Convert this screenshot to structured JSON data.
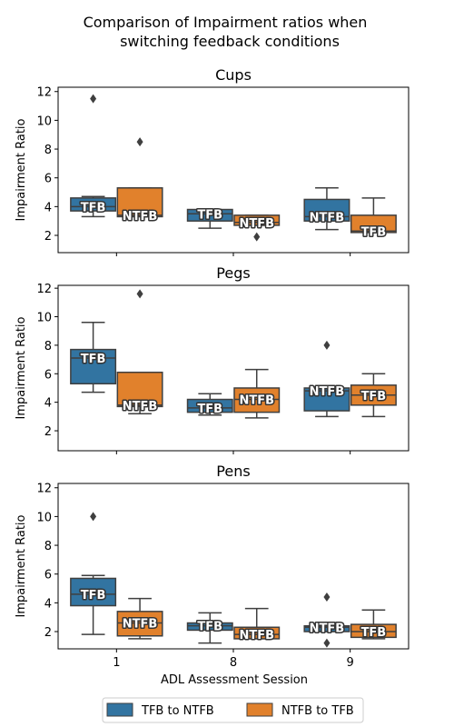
{
  "figure": {
    "title_line1": "Comparison of Impairment ratios when",
    "title_line2": "switching feedback conditions",
    "xlabel": "ADL Assessment Session",
    "ylabel": "Impairment Ratio"
  },
  "legend": {
    "placement": "bottom-center",
    "items": [
      {
        "label": "TFB to NTFB",
        "color": "#3274a1"
      },
      {
        "label": "NTFB to TFB",
        "color": "#e1812c"
      }
    ]
  },
  "colors": {
    "series1": "#3274a1",
    "series2": "#e1812c",
    "edge": "#3f3f3f"
  },
  "chart_data": [
    {
      "type": "box",
      "title": "Cups",
      "categories": [
        "1",
        "8",
        "9"
      ],
      "ylim": [
        0.8,
        12.3
      ],
      "yticks": [
        2,
        4,
        6,
        8,
        10,
        12
      ],
      "series": [
        {
          "name": "TFB to NTFB",
          "boxes": [
            {
              "category": "1",
              "whislo": 3.3,
              "q1": 3.7,
              "med": 4.0,
              "q3": 4.6,
              "whishi": 4.7,
              "fliers": [
                11.5
              ],
              "label": "TFB"
            },
            {
              "category": "8",
              "whislo": 2.5,
              "q1": 3.0,
              "med": 3.5,
              "q3": 3.8,
              "whishi": 3.8,
              "fliers": [],
              "label": "TFB"
            },
            {
              "category": "9",
              "whislo": 2.4,
              "q1": 3.0,
              "med": 3.3,
              "q3": 4.5,
              "whishi": 5.3,
              "fliers": [],
              "label": "NTFB"
            }
          ]
        },
        {
          "name": "NTFB to TFB",
          "boxes": [
            {
              "category": "1",
              "whislo": 3.3,
              "q1": 3.3,
              "med": 3.4,
              "q3": 5.3,
              "whishi": 5.3,
              "fliers": [
                8.5
              ],
              "label": "NTFB"
            },
            {
              "category": "8",
              "whislo": 2.7,
              "q1": 2.7,
              "med": 2.9,
              "q3": 3.4,
              "whishi": 3.4,
              "fliers": [
                1.9
              ],
              "label": "NTFB"
            },
            {
              "category": "9",
              "whislo": 2.2,
              "q1": 2.2,
              "med": 2.3,
              "q3": 3.4,
              "whishi": 4.6,
              "fliers": [],
              "label": "TFB"
            }
          ]
        }
      ]
    },
    {
      "type": "box",
      "title": "Pegs",
      "categories": [
        "1",
        "8",
        "9"
      ],
      "ylim": [
        0.6,
        12.2
      ],
      "yticks": [
        2,
        4,
        6,
        8,
        10,
        12
      ],
      "series": [
        {
          "name": "TFB to NTFB",
          "boxes": [
            {
              "category": "1",
              "whislo": 4.7,
              "q1": 5.3,
              "med": 7.1,
              "q3": 7.7,
              "whishi": 9.6,
              "fliers": [],
              "label": "TFB"
            },
            {
              "category": "8",
              "whislo": 3.1,
              "q1": 3.3,
              "med": 3.6,
              "q3": 4.2,
              "whishi": 4.6,
              "fliers": [],
              "label": "TFB"
            },
            {
              "category": "9",
              "whislo": 3.0,
              "q1": 3.4,
              "med": 4.8,
              "q3": 5.0,
              "whishi": 5.0,
              "fliers": [
                8.0
              ],
              "label": "NTFB"
            }
          ]
        },
        {
          "name": "NTFB to TFB",
          "boxes": [
            {
              "category": "1",
              "whislo": 3.2,
              "q1": 3.7,
              "med": 3.8,
              "q3": 6.1,
              "whishi": 6.1,
              "fliers": [
                11.6
              ],
              "label": "NTFB"
            },
            {
              "category": "8",
              "whislo": 2.9,
              "q1": 3.3,
              "med": 4.2,
              "q3": 5.0,
              "whishi": 6.3,
              "fliers": [],
              "label": "NTFB"
            },
            {
              "category": "9",
              "whislo": 3.0,
              "q1": 3.8,
              "med": 4.5,
              "q3": 5.2,
              "whishi": 6.0,
              "fliers": [],
              "label": "TFB"
            }
          ]
        }
      ]
    },
    {
      "type": "box",
      "title": "Pens",
      "categories": [
        "1",
        "8",
        "9"
      ],
      "ylim": [
        0.8,
        12.3
      ],
      "yticks": [
        2,
        4,
        6,
        8,
        10,
        12
      ],
      "series": [
        {
          "name": "TFB to NTFB",
          "boxes": [
            {
              "category": "1",
              "whislo": 1.8,
              "q1": 3.8,
              "med": 4.6,
              "q3": 5.7,
              "whishi": 5.9,
              "fliers": [
                10.0
              ],
              "label": "TFB"
            },
            {
              "category": "8",
              "whislo": 1.2,
              "q1": 2.1,
              "med": 2.4,
              "q3": 2.6,
              "whishi": 3.3,
              "fliers": [],
              "label": "TFB"
            },
            {
              "category": "9",
              "whislo": 2.0,
              "q1": 2.0,
              "med": 2.3,
              "q3": 2.4,
              "whishi": 2.4,
              "fliers": [
                4.4,
                1.2
              ],
              "label": "NTFB"
            }
          ]
        },
        {
          "name": "NTFB to TFB",
          "boxes": [
            {
              "category": "1",
              "whislo": 1.5,
              "q1": 1.7,
              "med": 2.6,
              "q3": 3.4,
              "whishi": 4.3,
              "fliers": [],
              "label": "NTFB"
            },
            {
              "category": "8",
              "whislo": 1.5,
              "q1": 1.5,
              "med": 1.8,
              "q3": 2.3,
              "whishi": 3.6,
              "fliers": [],
              "label": "NTFB"
            },
            {
              "category": "9",
              "whislo": 1.5,
              "q1": 1.6,
              "med": 2.0,
              "q3": 2.5,
              "whishi": 3.5,
              "fliers": [],
              "label": "TFB"
            }
          ]
        }
      ]
    }
  ]
}
